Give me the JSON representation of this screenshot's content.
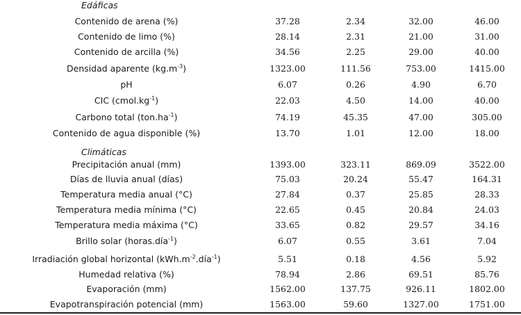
{
  "sections": {
    "edaficas": "Edáficas",
    "climaticas": "Climáticas"
  },
  "rows": [
    {
      "label": "Contenido de arena (%)",
      "v1": "37.28",
      "v2": "2.34",
      "v3": "32.00",
      "v4": "46.00"
    },
    {
      "label": "Contenido de limo (%)",
      "v1": "28.14",
      "v2": "2.31",
      "v3": "21.00",
      "v4": "31.00"
    },
    {
      "label": "Contenido de arcilla (%)",
      "v1": "34.56",
      "v2": "2.25",
      "v3": "29.00",
      "v4": "40.00"
    },
    {
      "label_pre": "Densidad aparente (kg.m",
      "label_sup": "-3",
      "label_post": ")",
      "v1": "1323.00",
      "v2": "111.56",
      "v3": "753.00",
      "v4": "1415.00"
    },
    {
      "label": "pH",
      "v1": "6.07",
      "v2": "0.26",
      "v3": "4.90",
      "v4": "6.70"
    },
    {
      "label_pre": "CIC (cmol.kg",
      "label_sup": "-1",
      "label_post": ")",
      "v1": "22.03",
      "v2": "4.50",
      "v3": "14.00",
      "v4": "40.00"
    },
    {
      "label_pre": "Carbono total (ton.ha",
      "label_sup": "-1",
      "label_post": ")",
      "v1": "74.19",
      "v2": "45.35",
      "v3": "47.00",
      "v4": "305.00"
    },
    {
      "label": "Contenido de agua disponible (%)",
      "v1": "13.70",
      "v2": "1.01",
      "v3": "12.00",
      "v4": "18.00"
    },
    {
      "label": "Precipitación anual (mm)",
      "v1": "1393.00",
      "v2": "323.11",
      "v3": "869.09",
      "v4": "3522.00"
    },
    {
      "label": "Días de lluvia anual (días)",
      "v1": "75.03",
      "v2": "20.24",
      "v3": "55.47",
      "v4": "164.31"
    },
    {
      "label": "Temperatura media anual (°C)",
      "v1": "27.84",
      "v2": "0.37",
      "v3": "25.85",
      "v4": "28.33"
    },
    {
      "label": "Temperatura media mínima (°C)",
      "v1": "22.65",
      "v2": "0.45",
      "v3": "20.84",
      "v4": "24.03"
    },
    {
      "label": "Temperatura media máxima (°C)",
      "v1": "33.65",
      "v2": "0.82",
      "v3": "29.57",
      "v4": "34.16"
    },
    {
      "label_pre": "Brillo solar (horas.día",
      "label_sup": "-1",
      "label_post": ")",
      "v1": "6.07",
      "v2": "0.55",
      "v3": "3.61",
      "v4": "7.04"
    },
    {
      "label_pre": "Irradiación global horizontal (kWh.m",
      "label_sup": "-2",
      "label_mid": ".día",
      "label_sup2": "-1",
      "label_post": ")",
      "v1": "5.51",
      "v2": "0.18",
      "v3": "4.56",
      "v4": "5.92"
    },
    {
      "label": "Humedad relativa (%)",
      "v1": "78.94",
      "v2": "2.86",
      "v3": "69.51",
      "v4": "85.76"
    },
    {
      "label": "Evaporación (mm)",
      "v1": "1562.00",
      "v2": "137.75",
      "v3": "926.11",
      "v4": "1802.00"
    },
    {
      "label": "Evapotranspiración potencial (mm)",
      "v1": "1563.00",
      "v2": "59.60",
      "v3": "1327.00",
      "v4": "1751.00"
    }
  ]
}
